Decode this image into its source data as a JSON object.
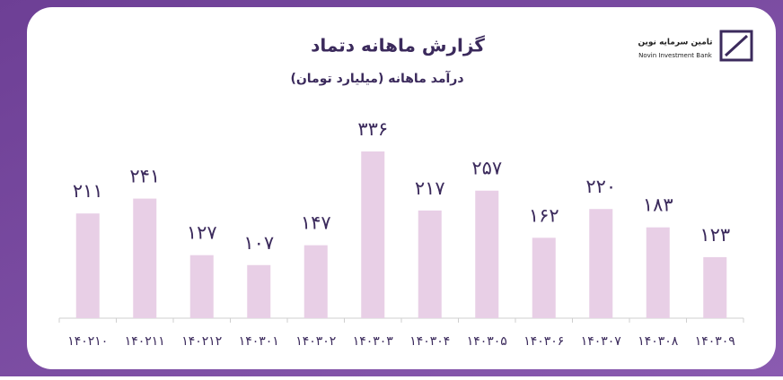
{
  "chart_data": {
    "type": "bar",
    "title": "گزارش ماهانه دتماد",
    "subtitle": "درآمد ماهانه (میلیارد تومان)",
    "categories": [
      "۱۴۰۲۱۰",
      "۱۴۰۲۱۱",
      "۱۴۰۲۱۲",
      "۱۴۰۳۰۱",
      "۱۴۰۳۰۲",
      "۱۴۰۳۰۳",
      "۱۴۰۳۰۴",
      "۱۴۰۳۰۵",
      "۱۴۰۳۰۶",
      "۱۴۰۳۰۷",
      "۱۴۰۳۰۸",
      "۱۴۰۳۰۹"
    ],
    "values": [
      211,
      241,
      127,
      107,
      147,
      336,
      217,
      257,
      162,
      220,
      183,
      123
    ],
    "value_labels": [
      "۲۱۱",
      "۲۴۱",
      "۱۲۷",
      "۱۰۷",
      "۱۴۷",
      "۳۳۶",
      "۲۱۷",
      "۲۵۷",
      "۱۶۲",
      "۲۲۰",
      "۱۸۳",
      "۱۲۳"
    ],
    "color": "#e8cfe6"
  },
  "logo": {
    "name": "تامین سرمایه نوین",
    "name_en": "Novin Investment Bank"
  }
}
